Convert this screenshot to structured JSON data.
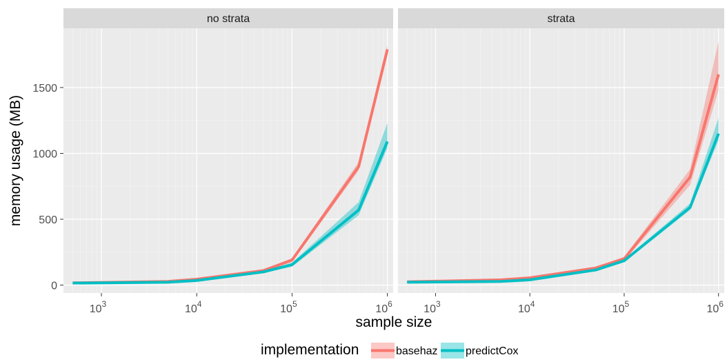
{
  "chart_data": {
    "type": "line",
    "xlabel": "sample size",
    "ylabel": "memory usage (MB)",
    "x_scale": "log10",
    "xlim": [
      400,
      1150000
    ],
    "ylim": [
      -60,
      1950
    ],
    "x_ticks": [
      {
        "value": 1000,
        "base": "10",
        "exp": "3"
      },
      {
        "value": 10000,
        "base": "10",
        "exp": "4"
      },
      {
        "value": 100000,
        "base": "10",
        "exp": "5"
      },
      {
        "value": 1000000,
        "base": "10",
        "exp": "6"
      }
    ],
    "y_ticks": [
      0,
      500,
      1000,
      1500
    ],
    "grid": true,
    "legend": {
      "title": "implementation",
      "position": "bottom",
      "entries": [
        {
          "name": "basehaz",
          "color": "#F8766D"
        },
        {
          "name": "predictCox",
          "color": "#00BFC4"
        }
      ]
    },
    "panels": [
      {
        "title": "no strata",
        "x": [
          500,
          5000,
          10000,
          50000,
          100000,
          500000,
          1000000
        ],
        "series": [
          {
            "name": "basehaz",
            "color": "#F8766D",
            "values": [
              17,
              28,
              45,
              110,
              190,
              900,
              1790
            ],
            "lower": [
              14,
              24,
              40,
              102,
              175,
              870,
              1740
            ],
            "upper": [
              20,
              32,
              50,
              118,
              205,
              935,
              1820
            ]
          },
          {
            "name": "predictCox",
            "color": "#00BFC4",
            "values": [
              15,
              22,
              35,
              100,
              155,
              570,
              1090
            ],
            "lower": [
              12,
              18,
              30,
              92,
              140,
              530,
              1040
            ],
            "upper": [
              18,
              26,
              40,
              108,
              170,
              630,
              1230
            ]
          }
        ]
      },
      {
        "title": "strata",
        "x": [
          500,
          5000,
          10000,
          50000,
          100000,
          500000,
          1000000
        ],
        "series": [
          {
            "name": "basehaz",
            "color": "#F8766D",
            "values": [
              25,
              40,
              55,
              130,
              200,
              820,
              1600
            ],
            "lower": [
              20,
              35,
              48,
              120,
              185,
              760,
              1480
            ],
            "upper": [
              30,
              45,
              62,
              140,
              215,
              880,
              1850
            ]
          },
          {
            "name": "predictCox",
            "color": "#00BFC4",
            "values": [
              22,
              28,
              40,
              115,
              185,
              590,
              1150
            ],
            "lower": [
              18,
              24,
              34,
              105,
              175,
              570,
              1100
            ],
            "upper": [
              26,
              32,
              46,
              125,
              195,
              620,
              1270
            ]
          }
        ]
      }
    ]
  }
}
